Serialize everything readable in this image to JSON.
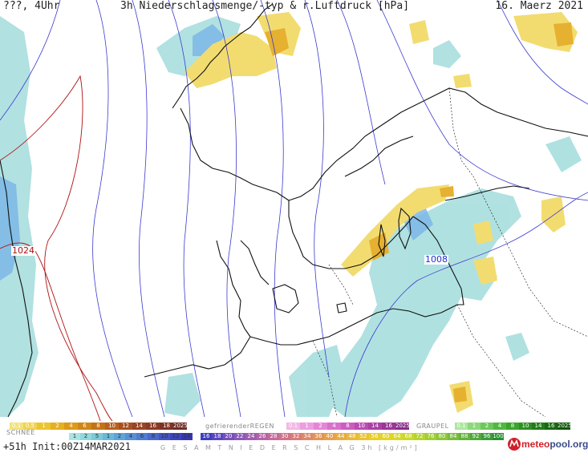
{
  "header": {
    "left": "???, 4Uhr",
    "title": "3h Niederschlagsmenge/-typ & r.Luftdruck [hPa]",
    "date": "16. Maerz 2021"
  },
  "isobars": {
    "high_label": "1024",
    "low_label": "1008",
    "high_color": "#b01010",
    "low_color": "#2030d0"
  },
  "legend": {
    "rain": {
      "items": [
        "0.1",
        "0.5",
        "1",
        "2",
        "4",
        "6",
        "8",
        "10",
        "12",
        "14",
        "16",
        "18",
        "2025+"
      ],
      "colors": [
        "#f2e27a",
        "#f0d44e",
        "#ecc430",
        "#e6b020",
        "#dc9a18",
        "#d08618",
        "#c47218",
        "#b8601c",
        "#a85020",
        "#984424",
        "#8a3a24",
        "#7c3224",
        "#6e2c24"
      ]
    },
    "freezing": {
      "title": "gefrierenderREGEN",
      "items": [
        "0.1",
        "1",
        "2",
        "4",
        "8",
        "10",
        "14",
        "16",
        "2025+"
      ],
      "colors": [
        "#f2b8e6",
        "#ec9ee0",
        "#e486d8",
        "#d870cc",
        "#cc5cc0",
        "#bc4cb2",
        "#ac40a4",
        "#9a3696",
        "#882e88"
      ]
    },
    "graupel": {
      "title": "GRAUPEL",
      "items": [
        "0.1",
        "1",
        "2",
        "4",
        "8",
        "10",
        "14",
        "16",
        "2025+"
      ],
      "colors": [
        "#aee6a0",
        "#8cd87c",
        "#6cc85c",
        "#50b840",
        "#3ca42c",
        "#2e9020",
        "#227c18",
        "#186812",
        "#10560c"
      ]
    },
    "snow": {
      "title": "SCHNEE",
      "items": [
        "1",
        "2",
        "5",
        "1",
        "2",
        "4",
        "6",
        "8",
        "10",
        "12",
        "14"
      ],
      "colors": [
        "#a8e4e4",
        "#90d8dc",
        "#7ccad8",
        "#6ab8d8",
        "#5ea4d8",
        "#5690d8",
        "#4e7cd4",
        "#4868cc",
        "#4254c4",
        "#3c44bc",
        "#3636b0"
      ]
    },
    "total": {
      "items": [
        "16",
        "18",
        "20",
        "22",
        "24",
        "26",
        "28",
        "30",
        "32",
        "34",
        "36",
        "40",
        "44",
        "48",
        "52",
        "56",
        "60",
        "64",
        "68",
        "72",
        "76",
        "80",
        "84",
        "88",
        "92",
        "96",
        "100"
      ],
      "colors": [
        "#3e3ec0",
        "#5a46c0",
        "#7450bc",
        "#8a58b8",
        "#a05eb0",
        "#b464a6",
        "#c46a98",
        "#d07288",
        "#d87c78",
        "#de8868",
        "#e29458",
        "#e6a04c",
        "#e8ac40",
        "#eab838",
        "#eac430",
        "#e8ce2c",
        "#e2d42a",
        "#d8d82a",
        "#c8d82c",
        "#b4d430",
        "#a0ce34",
        "#8cc638",
        "#78bc3a",
        "#64b23c",
        "#50a83c",
        "#3c9c3c",
        "#289030"
      ]
    },
    "caption": "G E S A M T N I E D E R S C H L A G  3h [kg/m²]"
  },
  "footer": {
    "run": "+51h Init:00Z14MAR2021",
    "brand_a": "meteo",
    "brand_b": "pool.org"
  }
}
